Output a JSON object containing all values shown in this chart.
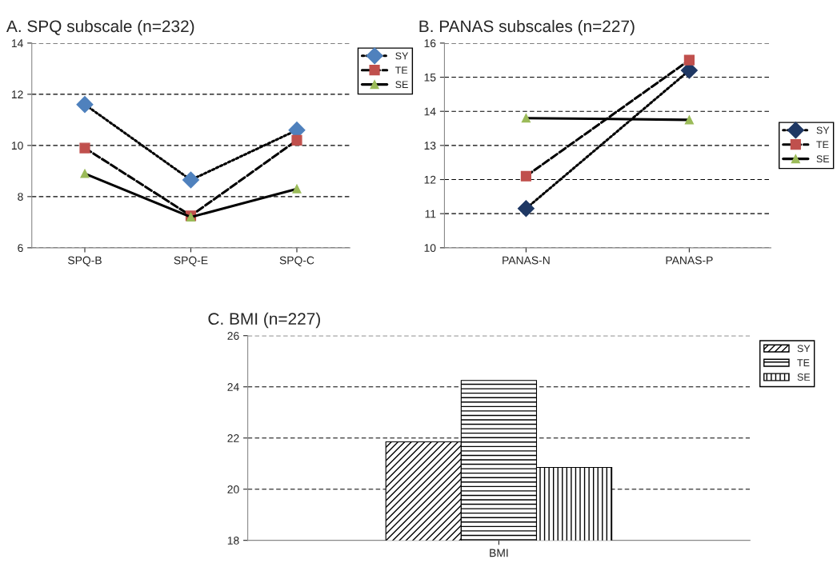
{
  "chart_data": [
    {
      "type": "line",
      "title": "A. SPQ subscale (n=232)",
      "categories": [
        "SPQ-B",
        "SPQ-E",
        "SPQ-C"
      ],
      "ylim": [
        6,
        14
      ],
      "yticks": [
        6,
        8,
        10,
        12,
        14
      ],
      "grid": "y",
      "legend": "top right",
      "series": [
        {
          "name": "SY",
          "color": "#000000",
          "colors": [
            "#4f81bd",
            "#4f81bd",
            "#4f81bd"
          ],
          "marker": "diamond",
          "line_style": "dotted",
          "values": [
            11.6,
            8.65,
            10.6
          ]
        },
        {
          "name": "TE",
          "color": "#000000",
          "colors": [
            "#c0504d",
            "#c0504d",
            "#c0504d"
          ],
          "marker": "square",
          "line_style": "dashed",
          "values": [
            9.9,
            7.25,
            10.2
          ]
        },
        {
          "name": "SE",
          "color": "#000000",
          "colors": [
            "#9bbb59",
            "#9bbb59",
            "#9bbb59"
          ],
          "marker": "triangle",
          "line_style": "solid",
          "values": [
            8.9,
            7.2,
            8.3
          ]
        }
      ]
    },
    {
      "type": "line",
      "title": "B. PANAS subscales (n=227)",
      "categories": [
        "PANAS-N",
        "PANAS-P"
      ],
      "ylim": [
        10,
        16
      ],
      "yticks": [
        10,
        11,
        12,
        13,
        14,
        15,
        16
      ],
      "grid": "y",
      "legend": "right",
      "series": [
        {
          "name": "SY",
          "color": "#000000",
          "colors": [
            "#1f3864",
            "#1f3864"
          ],
          "marker": "diamond",
          "line_style": "dotted",
          "values": [
            11.15,
            15.2
          ]
        },
        {
          "name": "TE",
          "color": "#000000",
          "colors": [
            "#c0504d",
            "#c0504d"
          ],
          "marker": "square",
          "line_style": "dashed",
          "values": [
            12.1,
            15.5
          ]
        },
        {
          "name": "SE",
          "color": "#000000",
          "colors": [
            "#9bbb59",
            "#9bbb59"
          ],
          "marker": "triangle",
          "line_style": "solid",
          "values": [
            13.8,
            13.75
          ]
        }
      ]
    },
    {
      "type": "bar",
      "title": "C. BMI (n=227)",
      "categories": [
        "BMI"
      ],
      "ylim": [
        18,
        26
      ],
      "yticks": [
        18,
        20,
        22,
        24,
        26
      ],
      "grid": "y",
      "legend": "top right",
      "series": [
        {
          "name": "SY",
          "color": "#000000",
          "values": [
            21.85
          ]
        },
        {
          "name": "TE",
          "color": "#000000",
          "values": [
            24.25
          ]
        },
        {
          "name": "SE",
          "color": "#000000",
          "values": [
            20.85
          ]
        }
      ]
    }
  ]
}
